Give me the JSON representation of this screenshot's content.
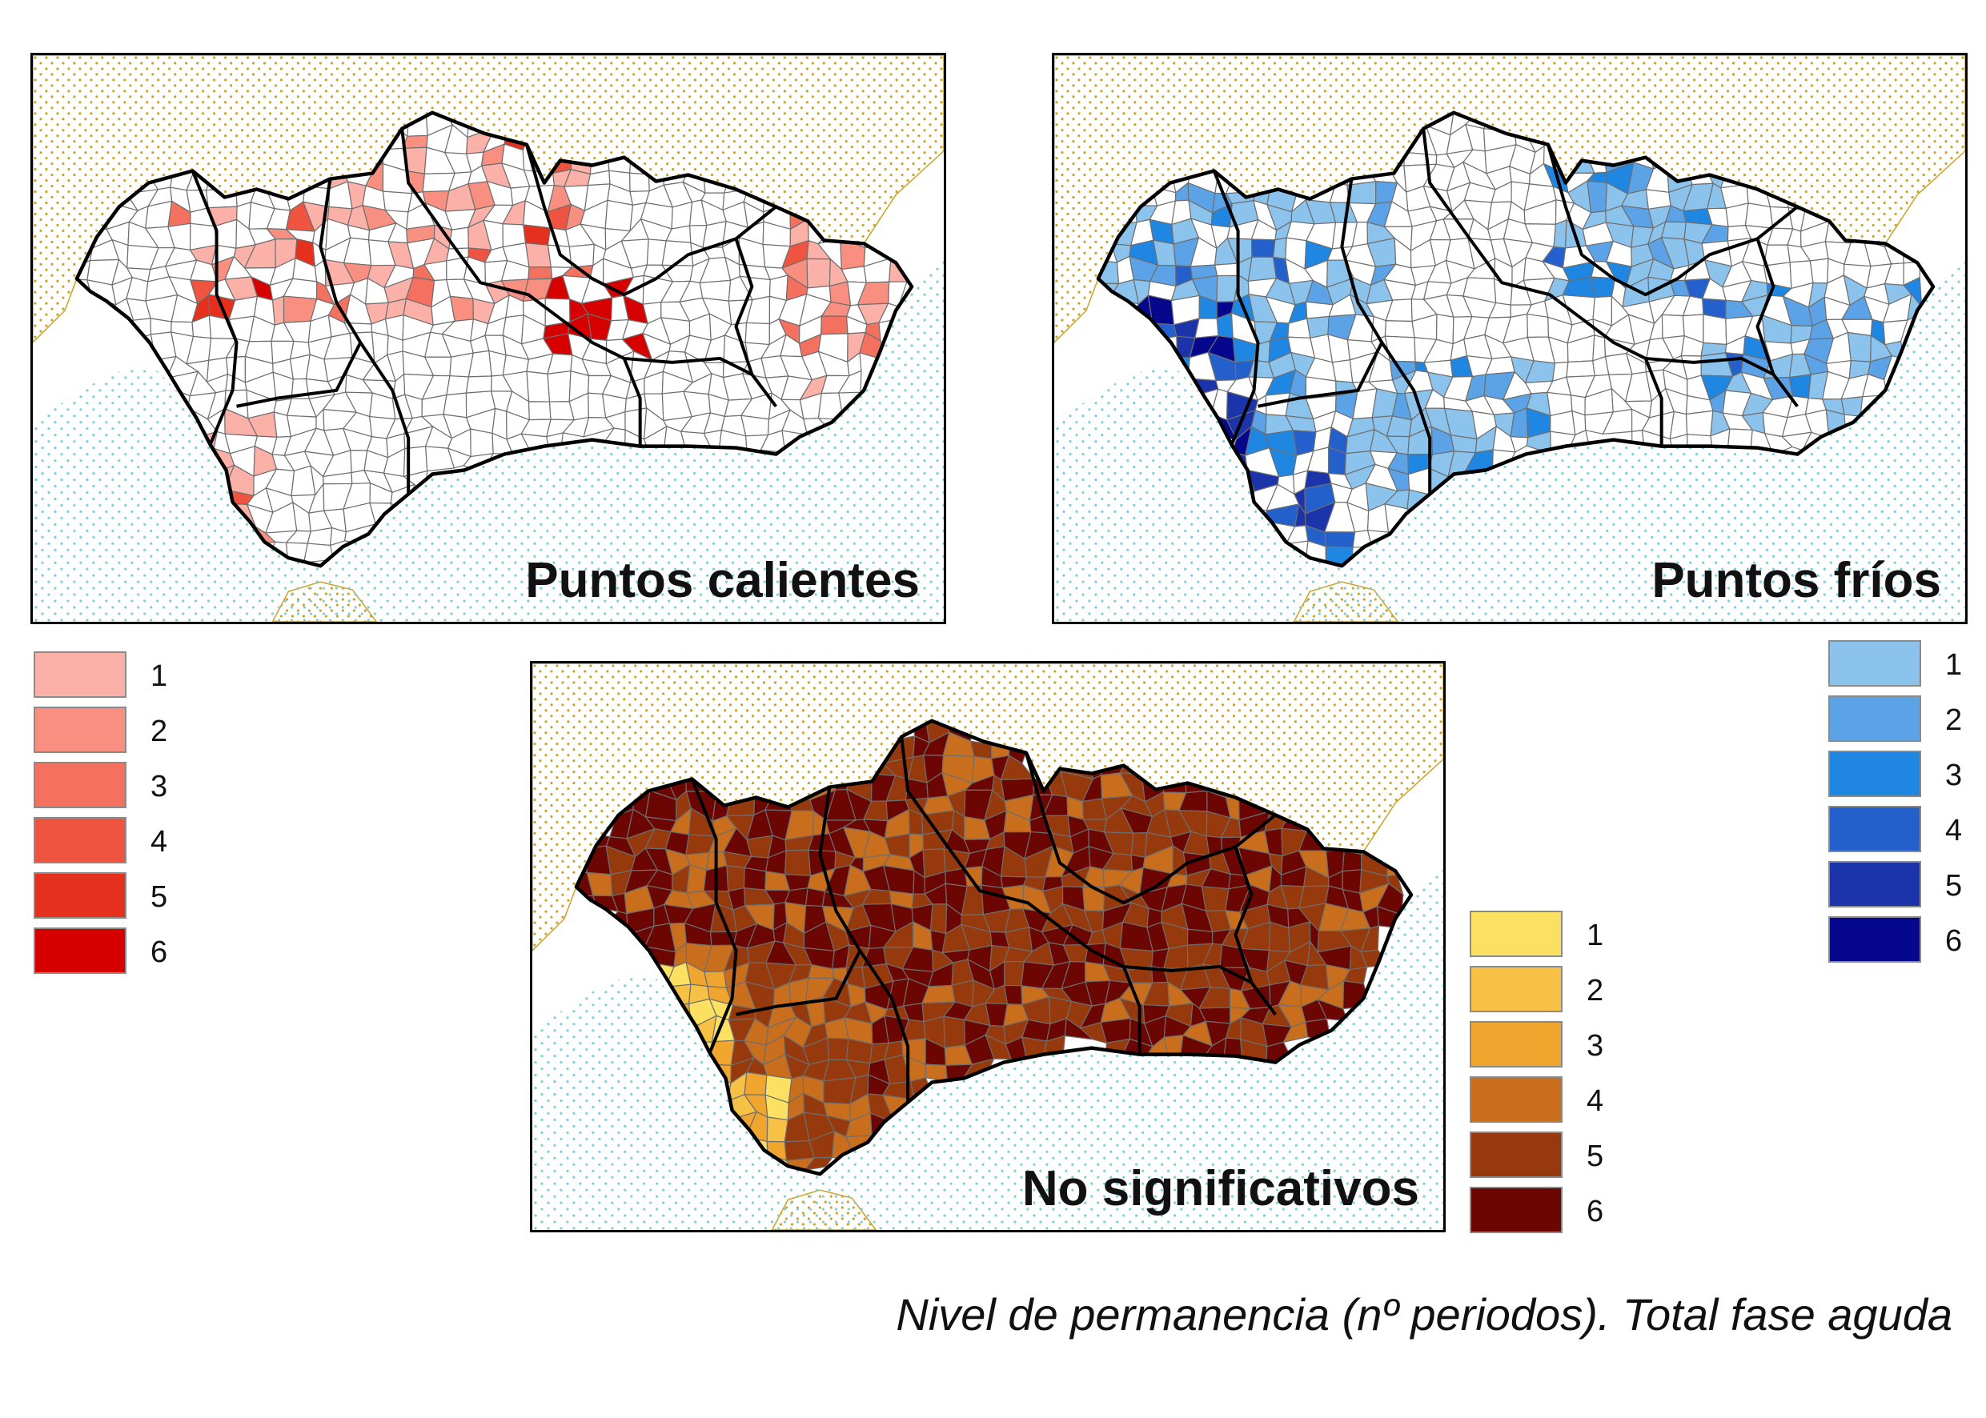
{
  "maps": [
    {
      "id": "hot",
      "title": "Puntos calientes",
      "palette": "hot"
    },
    {
      "id": "cold",
      "title": "Puntos fríos",
      "palette": "cold"
    },
    {
      "id": "ns",
      "title": "No significativos",
      "palette": "ns"
    }
  ],
  "legends": {
    "hot": {
      "items": [
        {
          "label": "1",
          "color": "#fbb0a8"
        },
        {
          "label": "2",
          "color": "#f88f80"
        },
        {
          "label": "3",
          "color": "#f47160"
        },
        {
          "label": "4",
          "color": "#ee5440"
        },
        {
          "label": "5",
          "color": "#e5301e"
        },
        {
          "label": "6",
          "color": "#d70000"
        }
      ]
    },
    "cold": {
      "items": [
        {
          "label": "1",
          "color": "#8cc3ec"
        },
        {
          "label": "2",
          "color": "#5ba3e6"
        },
        {
          "label": "3",
          "color": "#1f86e2"
        },
        {
          "label": "4",
          "color": "#2460cc"
        },
        {
          "label": "5",
          "color": "#1c34aa"
        },
        {
          "label": "6",
          "color": "#05088c"
        }
      ]
    },
    "ns": {
      "items": [
        {
          "label": "1",
          "color": "#fbe062"
        },
        {
          "label": "2",
          "color": "#f6c144"
        },
        {
          "label": "3",
          "color": "#f0a52e"
        },
        {
          "label": "4",
          "color": "#c96e1c"
        },
        {
          "label": "5",
          "color": "#96390c"
        },
        {
          "label": "6",
          "color": "#6b0603"
        }
      ]
    }
  },
  "styles": {
    "land_dots": "#c9a227",
    "sea_dots": "#7ecdd6",
    "border": "#000000",
    "municipal_lines": "#6e6e6e"
  },
  "caption": "Nivel de permanencia (nº periodos). Total fase aguda"
}
